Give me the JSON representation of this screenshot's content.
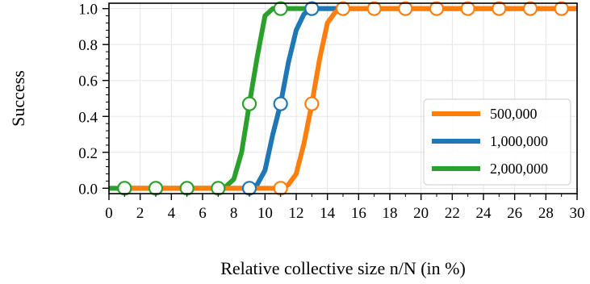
{
  "chart_data": {
    "type": "line",
    "title": "",
    "xlabel": "Relative collective size n/N (in %)",
    "ylabel": "Success",
    "xlim": [
      0,
      30
    ],
    "ylim": [
      -0.03,
      1.03
    ],
    "x_ticks": [
      "0",
      "2",
      "4",
      "6",
      "8",
      "10",
      "12",
      "14",
      "16",
      "18",
      "20",
      "22",
      "24",
      "26",
      "28",
      "30"
    ],
    "y_ticks": [
      "0.0",
      "0.2",
      "0.4",
      "0.6",
      "0.8",
      "1.0"
    ],
    "grid": true,
    "legend_position": "right",
    "series": [
      {
        "name": "500,000",
        "color": "#ff7f0e",
        "x": [
          1,
          2,
          3,
          4,
          5,
          6,
          7,
          8,
          9,
          10,
          11,
          11.5,
          12,
          12.5,
          13,
          13.5,
          14,
          14.5,
          15,
          16,
          17,
          18,
          19,
          20,
          21,
          22,
          23,
          24,
          25,
          26,
          27,
          28,
          29,
          30
        ],
        "y": [
          0,
          0,
          0,
          0,
          0,
          0,
          0,
          0,
          0,
          0,
          0,
          0.02,
          0.08,
          0.25,
          0.47,
          0.72,
          0.92,
          0.98,
          1,
          1,
          1,
          1,
          1,
          1,
          1,
          1,
          1,
          1,
          1,
          1,
          1,
          1,
          1,
          1
        ],
        "markers_x": [
          11,
          13,
          15,
          17,
          19,
          21,
          23,
          25,
          27,
          29
        ],
        "markers_y": [
          0,
          0.47,
          1,
          1,
          1,
          1,
          1,
          1,
          1,
          1
        ]
      },
      {
        "name": "1,000,000",
        "color": "#1f77b4",
        "x": [
          1,
          2,
          3,
          4,
          5,
          6,
          7,
          8,
          9,
          9.5,
          10,
          10.5,
          11,
          11.5,
          12,
          12.5,
          13,
          14,
          15,
          16,
          17,
          18,
          19,
          20,
          21,
          22,
          23,
          24,
          25,
          26,
          27,
          28,
          29,
          30
        ],
        "y": [
          0,
          0,
          0,
          0,
          0,
          0,
          0,
          0,
          0,
          0.02,
          0.1,
          0.3,
          0.47,
          0.7,
          0.88,
          0.97,
          1,
          1,
          1,
          1,
          1,
          1,
          1,
          1,
          1,
          1,
          1,
          1,
          1,
          1,
          1,
          1,
          1,
          1
        ],
        "markers_x": [
          9,
          11,
          13
        ],
        "markers_y": [
          0,
          0.47,
          1
        ]
      },
      {
        "name": "2,000,000",
        "color": "#2ca02c",
        "x": [
          0,
          1,
          2,
          3,
          4,
          5,
          6,
          7,
          7.5,
          8,
          8.5,
          9,
          9.5,
          10,
          10.5,
          11,
          12,
          13,
          14,
          15,
          16,
          17,
          18,
          19,
          20,
          21,
          22,
          23,
          24,
          25,
          26,
          27,
          28,
          29,
          30
        ],
        "y": [
          0,
          0,
          0,
          0,
          0,
          0,
          0,
          0,
          0.01,
          0.05,
          0.2,
          0.47,
          0.73,
          0.96,
          1,
          1,
          1,
          1,
          1,
          1,
          1,
          1,
          1,
          1,
          1,
          1,
          1,
          1,
          1,
          1,
          1,
          1,
          1,
          1,
          1
        ],
        "markers_x": [
          1,
          3,
          5,
          7,
          9,
          11
        ],
        "markers_y": [
          0,
          0,
          0,
          0,
          0.47,
          1
        ]
      }
    ]
  }
}
